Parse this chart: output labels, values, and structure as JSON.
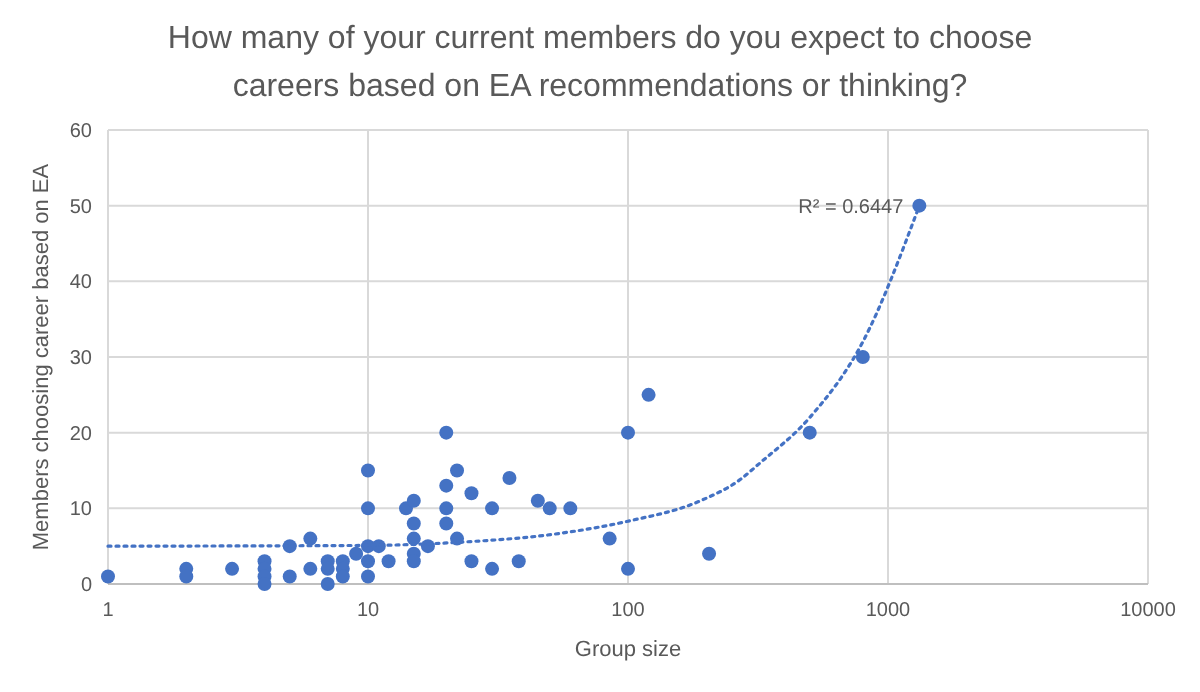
{
  "chart_data": {
    "type": "scatter",
    "title": "How many of your current members do you expect to choose careers based on EA recommendations or thinking?",
    "xlabel": "Group size",
    "ylabel": "Members choosing career based on EA",
    "log": "x",
    "grid": true,
    "marker": "circle",
    "xlim": [
      1,
      10000
    ],
    "xticks": [
      1,
      10,
      100,
      1000,
      10000
    ],
    "ylim": [
      0,
      60
    ],
    "yticks": [
      0,
      10,
      20,
      30,
      40,
      50,
      60
    ],
    "series": [
      {
        "color": "#4472c4",
        "x": [
          1,
          2,
          2,
          3,
          4,
          4,
          4,
          4,
          5,
          5,
          6,
          6,
          7,
          7,
          7,
          8,
          8,
          8,
          9,
          10,
          10,
          10,
          10,
          10,
          11,
          12,
          14,
          15,
          15,
          15,
          15,
          15,
          17,
          20,
          20,
          20,
          20,
          22,
          22,
          25,
          25,
          30,
          30,
          35,
          38,
          45,
          50,
          60,
          85,
          100,
          100,
          120,
          205,
          500,
          800,
          1320
        ],
        "values": [
          1,
          2,
          1,
          2,
          3,
          2,
          1,
          0,
          5,
          1,
          6,
          2,
          3,
          2,
          0,
          3,
          2,
          1,
          4,
          15,
          10,
          5,
          3,
          1,
          5,
          3,
          10,
          11,
          8,
          6,
          4,
          3,
          5,
          20,
          13,
          10,
          8,
          15,
          6,
          12,
          3,
          10,
          2,
          14,
          3,
          11,
          10,
          10,
          6,
          20,
          2,
          25,
          4,
          20,
          30,
          50
        ]
      },
      {
        "type": "line",
        "color": "#4472c4",
        "line_style": "dotted",
        "marker": "none",
        "x": [
          1,
          10,
          22,
          55,
          100,
          190,
          270,
          322,
          500,
          800,
          1320
        ],
        "values": [
          5,
          5.1,
          5.5,
          6.7,
          8.3,
          11,
          13.8,
          16,
          22,
          32,
          50
        ]
      }
    ],
    "annotations": [
      {
        "text": "R² = 0.6447",
        "x": 1320,
        "y": 50
      }
    ]
  }
}
